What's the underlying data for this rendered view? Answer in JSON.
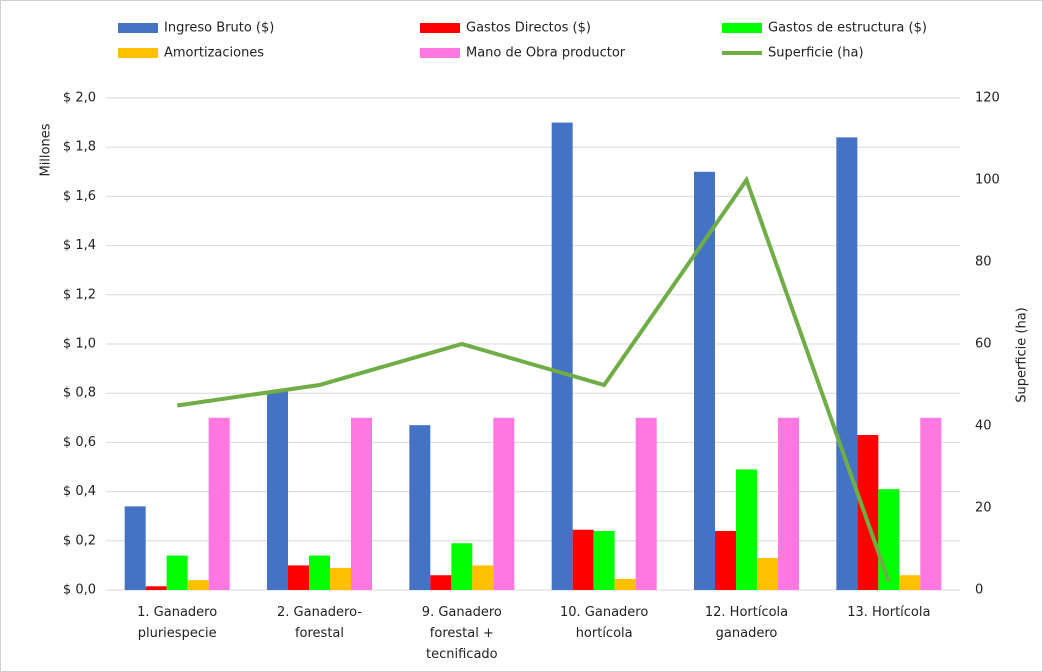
{
  "chart_data": {
    "type": "bar",
    "categories": [
      "1. Ganadero\npluriespecie",
      "2. Ganadero-\nforestal",
      "9. Ganadero\nforestal +\ntecnificado",
      "10. Ganadero\nhortícola",
      "12. Hortícola\nganadero",
      "13. Hortícola"
    ],
    "series": [
      {
        "name": "Ingreso Bruto ($)",
        "color": "#4472c4",
        "values": [
          0.34,
          0.81,
          0.67,
          1.9,
          1.7,
          1.84
        ]
      },
      {
        "name": "Gastos Directos ($)",
        "color": "#ff0000",
        "values": [
          0.015,
          0.1,
          0.06,
          0.245,
          0.24,
          0.63
        ]
      },
      {
        "name": "Gastos de estructura ($)",
        "color": "#00ff00",
        "values": [
          0.14,
          0.14,
          0.19,
          0.24,
          0.49,
          0.41
        ]
      },
      {
        "name": "Amortizaciones",
        "color": "#ffc000",
        "values": [
          0.04,
          0.09,
          0.1,
          0.045,
          0.13,
          0.06
        ]
      },
      {
        "name": "Mano de Obra productor",
        "color": "#ff77e0",
        "values": [
          0.7,
          0.7,
          0.7,
          0.7,
          0.7,
          0.7
        ]
      },
      {
        "name": "Superficie (ha)",
        "color": "#70ad47",
        "type": "line",
        "axis": "y2",
        "values": [
          45,
          50,
          60,
          50,
          100,
          2
        ]
      }
    ],
    "ylabel": "Millones",
    "y2label": "Superficie (ha)",
    "ylim": [
      0,
      2
    ],
    "yticks": [
      {
        "value": 0,
        "label": "$ 0,0"
      },
      {
        "value": 0.2,
        "label": "$ 0,2"
      },
      {
        "value": 0.4,
        "label": "$ 0,4"
      },
      {
        "value": 0.6,
        "label": "$ 0,6"
      },
      {
        "value": 0.8,
        "label": "$ 0,8"
      },
      {
        "value": 1.0,
        "label": "$ 1,0"
      },
      {
        "value": 1.2,
        "label": "$ 1,2"
      },
      {
        "value": 1.4,
        "label": "$ 1,4"
      },
      {
        "value": 1.6,
        "label": "$ 1,6"
      },
      {
        "value": 1.8,
        "label": "$ 1,8"
      },
      {
        "value": 2.0,
        "label": "$ 2,0"
      }
    ],
    "y2lim": [
      0,
      120
    ],
    "y2ticks": [
      0,
      20,
      40,
      60,
      80,
      100,
      120
    ],
    "grid": true,
    "legend": "top"
  }
}
